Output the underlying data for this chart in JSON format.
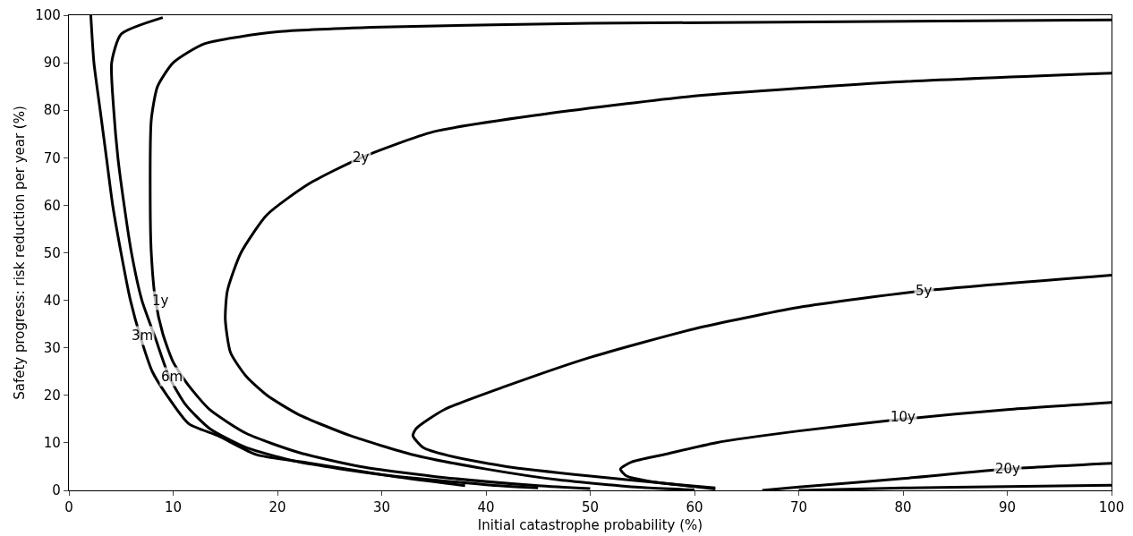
{
  "chart_data": {
    "type": "line",
    "xlabel": "Initial catastrophe probability (%)",
    "ylabel": "Safety progress: risk reduction per year (%)",
    "xlim": [
      0,
      100
    ],
    "ylim": [
      0,
      100
    ],
    "xticks": [
      0,
      10,
      20,
      30,
      40,
      50,
      60,
      70,
      80,
      90,
      100
    ],
    "yticks": [
      0,
      10,
      20,
      30,
      40,
      50,
      60,
      70,
      80,
      90,
      100
    ],
    "grid": false,
    "marker": "none",
    "line_style": "solid",
    "series": [
      {
        "color": "#000000",
        "x": [
          2.1,
          2.4,
          3,
          3.6,
          4.2,
          5,
          5.9,
          6.9,
          8,
          9.4,
          11.5,
          14.3,
          18,
          22.9,
          31.5,
          38
        ],
        "values": [
          100,
          90,
          80,
          70,
          60,
          50,
          40,
          32,
          25,
          20,
          14,
          11.5,
          7.5,
          5.8,
          2.8,
          1
        ]
      },
      {
        "color": "#000000",
        "x": [
          9,
          5,
          4.1,
          4.3,
          4.7,
          5.3,
          6,
          7,
          8.3,
          9.6,
          11.2,
          13.5,
          17,
          22,
          30,
          40,
          45
        ],
        "values": [
          99.5,
          96,
          90,
          80,
          70,
          60,
          50,
          40,
          32,
          24,
          18,
          13,
          9,
          6,
          3.3,
          1.2,
          0.5
        ]
      },
      {
        "color": "#000000",
        "x": [
          100,
          50,
          30,
          20,
          13,
          10,
          8.5,
          7.9,
          7.8,
          7.9,
          8.3,
          9,
          10,
          11.5,
          13.5,
          17,
          22,
          28,
          36,
          45,
          50
        ],
        "values": [
          99,
          98.3,
          97.5,
          96.5,
          94,
          90,
          85,
          78,
          60,
          50,
          40,
          33,
          27,
          22,
          17,
          12,
          8,
          5,
          2.7,
          1,
          0.4
        ]
      },
      {
        "color": "#000000",
        "x": [
          100,
          80,
          60,
          45,
          35,
          28,
          23,
          19,
          16.5,
          15.2,
          15,
          15.5,
          17,
          19,
          22,
          27,
          33,
          40,
          47,
          55,
          60
        ],
        "values": [
          87.8,
          86,
          83,
          79,
          75.5,
          70,
          64.5,
          58,
          50,
          42,
          36,
          29,
          24,
          20,
          16,
          11.5,
          7.5,
          4.5,
          2.2,
          0.6,
          0.1
        ]
      },
      {
        "color": "#000000",
        "x": [
          100,
          82,
          70,
          60,
          50,
          42,
          36,
          33.3,
          33,
          34,
          37,
          42,
          50,
          57,
          62
        ],
        "values": [
          45.3,
          42,
          38.5,
          34,
          28,
          22,
          17,
          13,
          11.5,
          9,
          7,
          5,
          3,
          1.5,
          0.5
        ]
      },
      {
        "color": "#000000",
        "x": [
          100,
          90,
          80,
          70,
          62,
          57,
          54,
          52.9,
          53.5,
          56,
          60,
          62
        ],
        "values": [
          18.5,
          17,
          15,
          12.5,
          10,
          7.5,
          6,
          4.5,
          3,
          1.8,
          0.8,
          0.3
        ]
      },
      {
        "color": "#000000",
        "x": [
          66.5,
          70,
          80,
          90,
          100
        ],
        "values": [
          0,
          0.7,
          2.5,
          4.5,
          5.7
        ]
      },
      {
        "color": "#000000",
        "x": [
          70,
          80,
          90,
          100
        ],
        "values": [
          0,
          0.5,
          0.8,
          1.1
        ]
      }
    ],
    "annotations": [
      {
        "text": "3m",
        "x": 7,
        "y": 32.5
      },
      {
        "text": "6m",
        "x": 9.9,
        "y": 24
      },
      {
        "text": "1y",
        "x": 8.8,
        "y": 40
      },
      {
        "text": "2y",
        "x": 28,
        "y": 70
      },
      {
        "text": "5y",
        "x": 82,
        "y": 42
      },
      {
        "text": "10y",
        "x": 80,
        "y": 15.5
      },
      {
        "text": "20y",
        "x": 90,
        "y": 4.5
      }
    ]
  }
}
